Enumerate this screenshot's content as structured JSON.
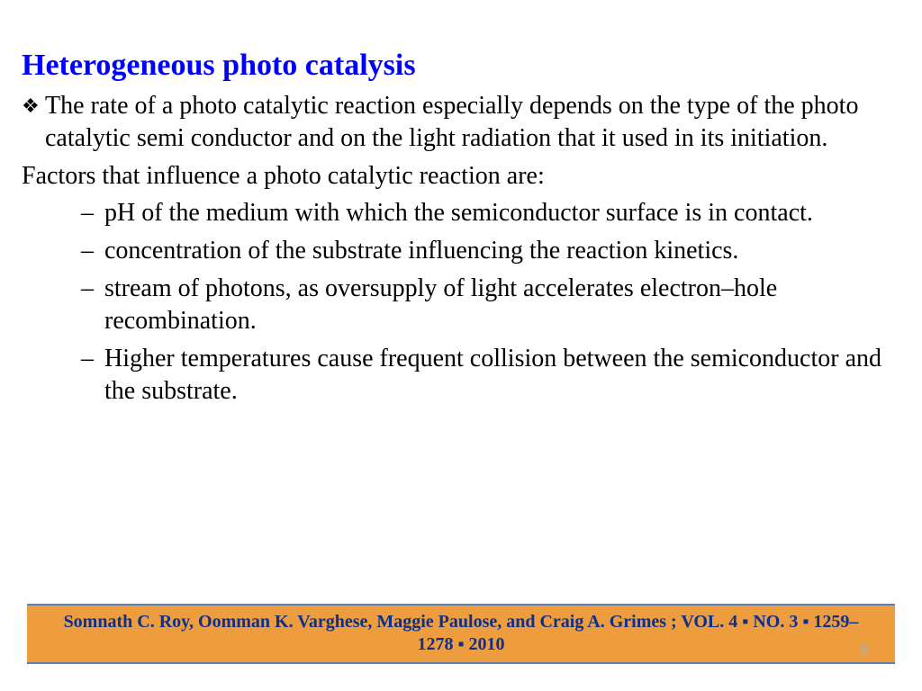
{
  "title": "Heterogeneous photo catalysis",
  "title_color": "#0000ff",
  "body_color": "#000000",
  "body_fontsize": 28,
  "main_bullet": {
    "marker": "❖",
    "text": "The rate of a photo catalytic reaction especially depends on the type of the photo catalytic semi conductor and on the light radiation that it used in its initiation."
  },
  "factors_intro": "Factors that influence a photo catalytic reaction are:",
  "sub_bullets": [
    {
      "marker": "–",
      "text": "pH of the medium with which the semiconductor surface is in contact."
    },
    {
      "marker": "–",
      "text": "concentration of the substrate influencing the reaction kinetics."
    },
    {
      "marker": "–",
      "text": "stream of photons, as oversupply of light accelerates electron–hole recombination."
    },
    {
      "marker": "–",
      "text": "Higher temperatures cause frequent collision between the semiconductor and the substrate."
    }
  ],
  "footer": {
    "background_color": "#ed9c3e",
    "border_color": "#5a7fb0",
    "text_color": "#0e2f8a",
    "text": "Somnath C. Roy, Oomman K. Varghese, Maggie Paulose, and Craig A. Grimes ; VOL. 4 ▪ NO. 3 ▪ 1259–1278 ▪ 2010"
  },
  "page_number": "9"
}
